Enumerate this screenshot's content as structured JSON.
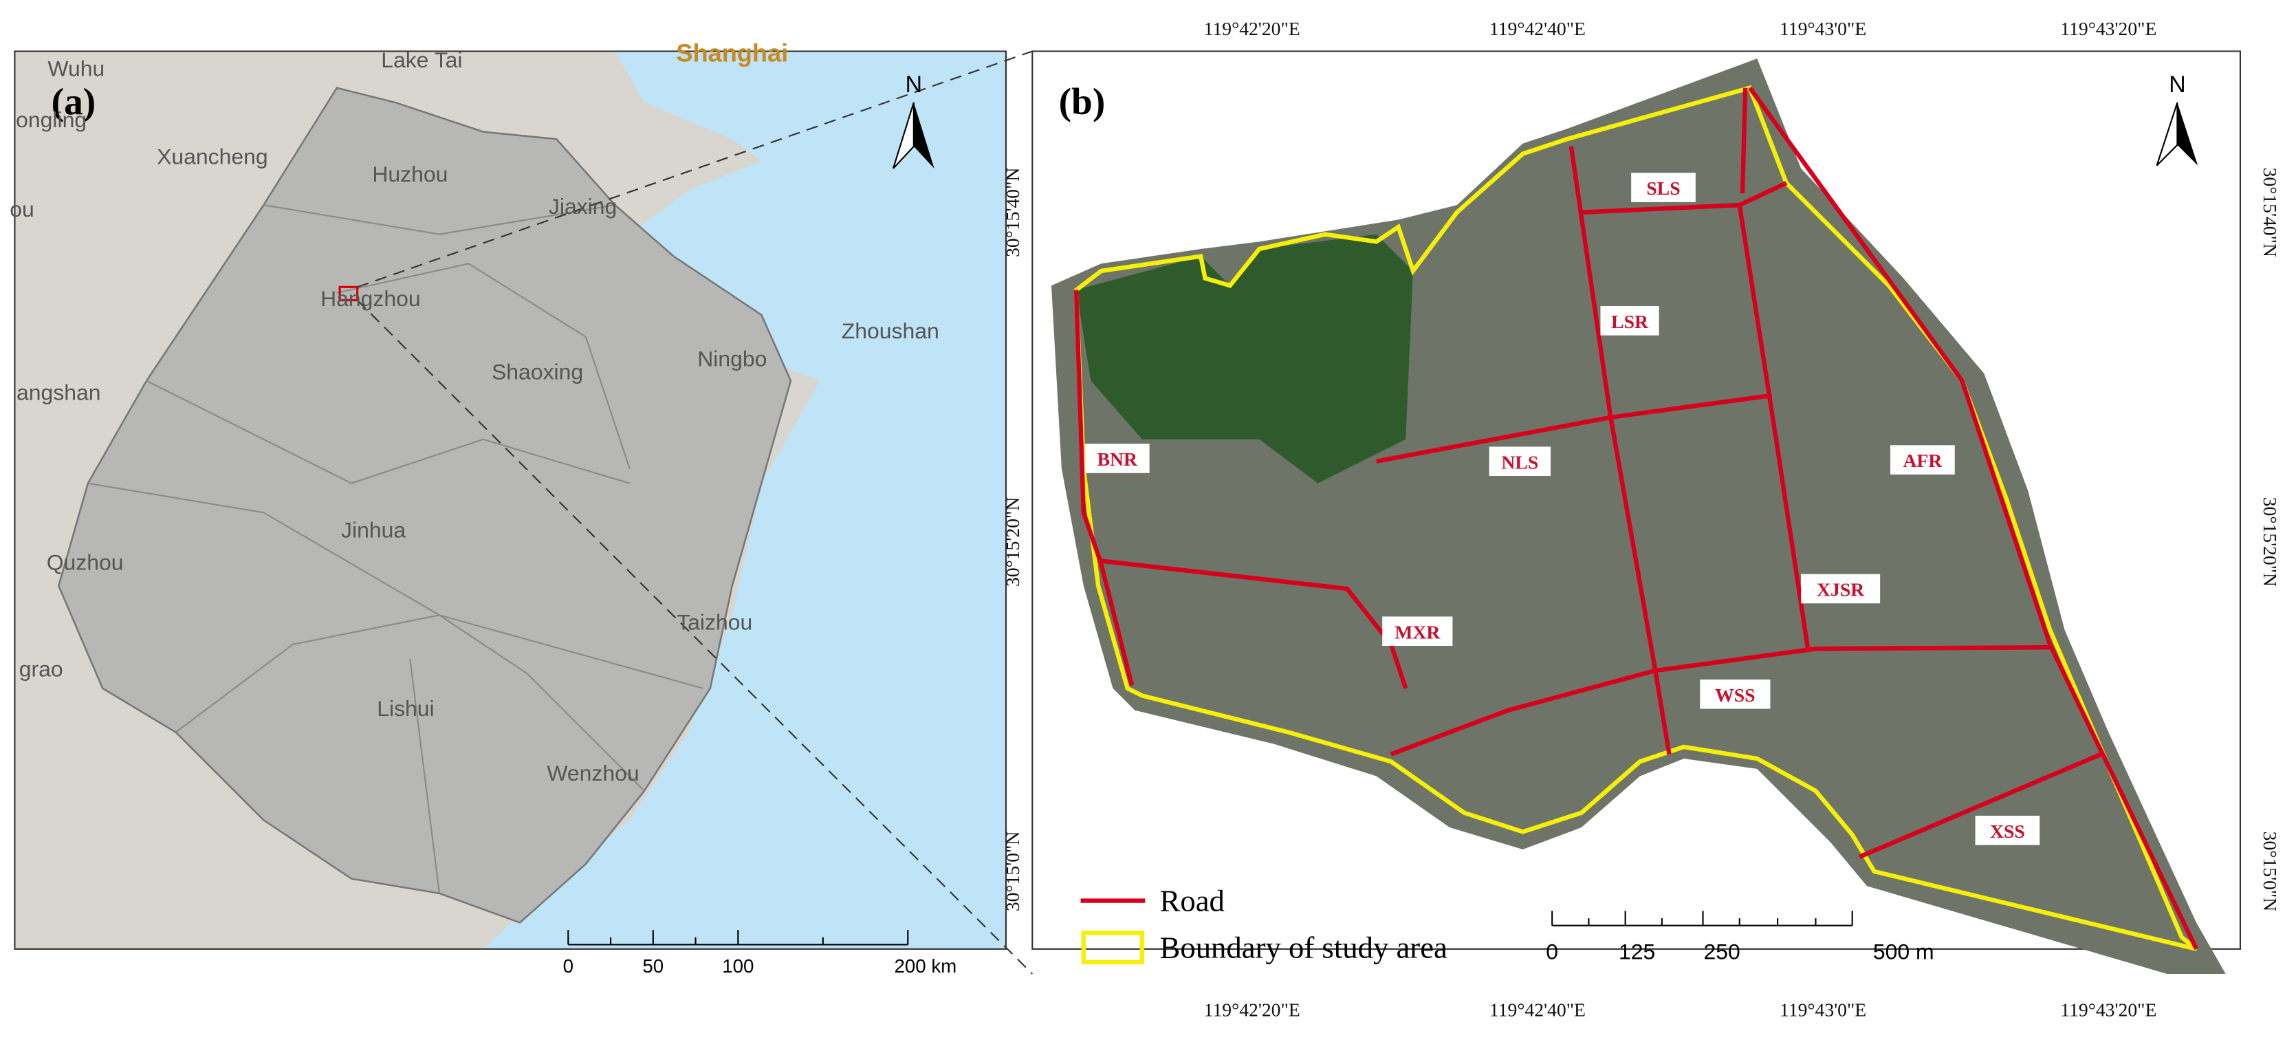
{
  "panel_a": {
    "label": "(a)",
    "north": "N",
    "places": [
      "Wuhu",
      "Lake Tai",
      "Shanghai",
      "ongling",
      "Xuancheng",
      "Huzhou",
      "Jiaxing",
      "ou",
      "Hangzhou",
      "Shaoxing",
      "Ningbo",
      "Zhoushan",
      "angshan",
      "Quzhou",
      "Jinhua",
      "Taizhou",
      "grao",
      "Lishui",
      "Wenzhou"
    ],
    "scale_labels": [
      "0",
      "50",
      "100",
      "200 km"
    ]
  },
  "panel_b": {
    "label": "(b)",
    "north": "N",
    "top_coords": [
      "119°42'20\"E",
      "119°42'40\"E",
      "119°43'0\"E",
      "119°43'20\"E"
    ],
    "bottom_coords": [
      "119°42'20\"E",
      "119°42'40\"E",
      "119°43'0\"E",
      "119°43'20\"E"
    ],
    "left_coords": [
      "30°15'40\"N",
      "30°15'20\"N",
      "30°15'0\"N"
    ],
    "right_coords": [
      "30°15'40\"N",
      "30°15'20\"N",
      "30°15'0\"N"
    ],
    "roads": [
      "SLS",
      "LSR",
      "NLS",
      "AFR",
      "BNR",
      "XJSR",
      "MXR",
      "WSS",
      "XSS"
    ],
    "legend": [
      "Road",
      "Boundary of study area"
    ],
    "scale_labels": [
      "0",
      "125",
      "250",
      "500 m"
    ]
  }
}
